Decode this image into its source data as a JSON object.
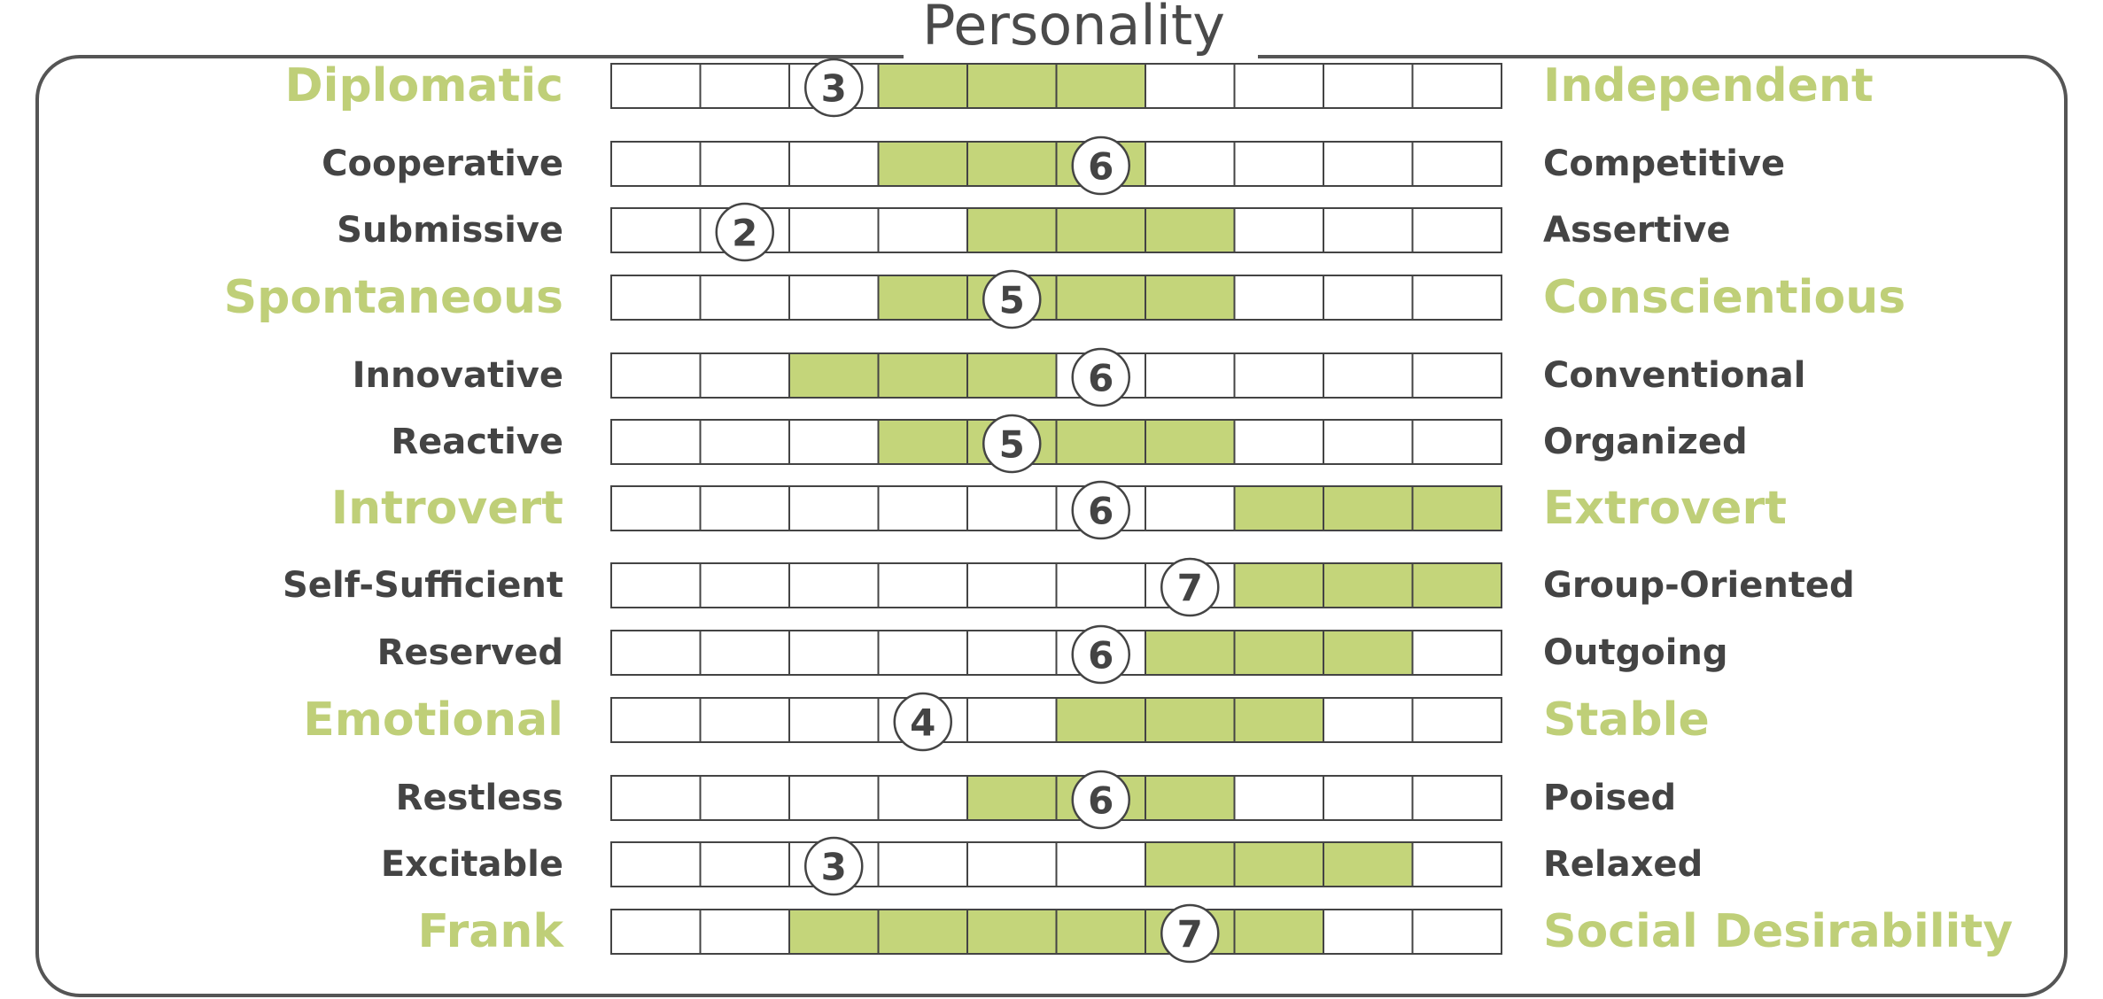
{
  "chart_data": {
    "type": "table",
    "title": "Personality",
    "scale_min": 1,
    "scale_max": 10,
    "colors": {
      "highlight": "#c4d57a",
      "major_label": "#bfcf78",
      "minor_label": "#444444",
      "cell_border": "#444444",
      "frame": "#555555"
    },
    "rows": [
      {
        "left": "Diplomatic",
        "right": "Independent",
        "major": true,
        "score": 3,
        "range": [
          4,
          6
        ]
      },
      {
        "left": "Cooperative",
        "right": "Competitive",
        "major": false,
        "score": 6,
        "range": [
          4,
          6
        ]
      },
      {
        "left": "Submissive",
        "right": "Assertive",
        "major": false,
        "score": 2,
        "range": [
          5,
          7
        ]
      },
      {
        "left": "Spontaneous",
        "right": "Conscientious",
        "major": true,
        "score": 5,
        "range": [
          4,
          7
        ]
      },
      {
        "left": "Innovative",
        "right": "Conventional",
        "major": false,
        "score": 6,
        "range": [
          3,
          5
        ]
      },
      {
        "left": "Reactive",
        "right": "Organized",
        "major": false,
        "score": 5,
        "range": [
          4,
          7
        ]
      },
      {
        "left": "Introvert",
        "right": "Extrovert",
        "major": true,
        "score": 6,
        "range": [
          8,
          10
        ]
      },
      {
        "left": "Self-Sufficient",
        "right": "Group-Oriented",
        "major": false,
        "score": 7,
        "range": [
          8,
          10
        ]
      },
      {
        "left": "Reserved",
        "right": "Outgoing",
        "major": false,
        "score": 6,
        "range": [
          7,
          9
        ]
      },
      {
        "left": "Emotional",
        "right": "Stable",
        "major": true,
        "score": 4,
        "range": [
          6,
          8
        ]
      },
      {
        "left": "Restless",
        "right": "Poised",
        "major": false,
        "score": 6,
        "range": [
          5,
          7
        ]
      },
      {
        "left": "Excitable",
        "right": "Relaxed",
        "major": false,
        "score": 3,
        "range": [
          7,
          9
        ]
      },
      {
        "left": "Frank",
        "right": "Social Desirability",
        "major": true,
        "score": 7,
        "range": [
          3,
          8
        ]
      }
    ]
  }
}
